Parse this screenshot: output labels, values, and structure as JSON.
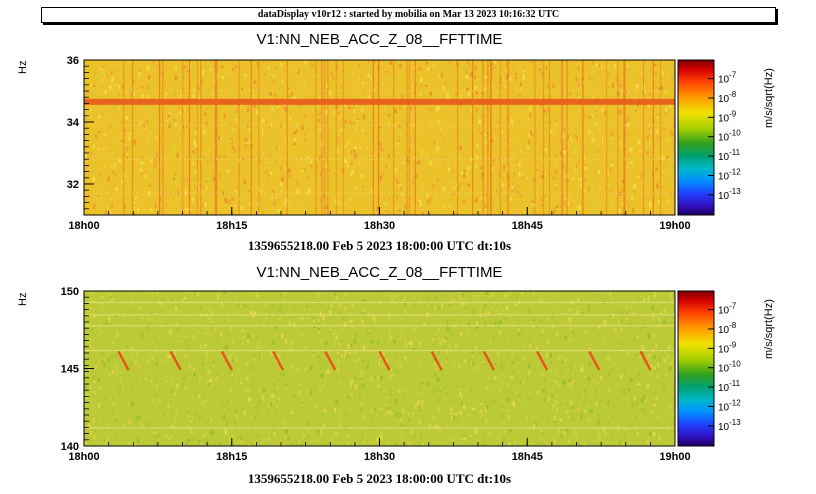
{
  "header": {
    "text": "dataDisplay v10r12 : started by mobilia on Mar 13 2023 10:16:32 UTC"
  },
  "colors": {
    "background_top": "#e8c227",
    "background_bottom": "#b8c93a",
    "track": "#e8521c"
  },
  "chart_data": [
    {
      "type": "heatmap",
      "title": "V1:NN_NEB_ACC_Z_08__FFTTIME",
      "ylabel": "Hz",
      "xlabel": "1359655218.00 Feb 5 2023 18:00:00 UTC dt:10s",
      "ylim": [
        31,
        36
      ],
      "yticks": [
        32,
        34,
        36
      ],
      "xticks": [
        "18h00",
        "18h15",
        "18h30",
        "18h45",
        "19h00"
      ],
      "zlabel": "m/s/sqrt(Hz)",
      "zticks": [
        "10-7",
        "10-8",
        "10-9",
        "10-10",
        "10-11",
        "10-12",
        "10-13"
      ],
      "features": {
        "horizontal_line_hz": 34.65,
        "dominant_level": "10-8"
      }
    },
    {
      "type": "heatmap",
      "title": "V1:NN_NEB_ACC_Z_08__FFTTIME",
      "ylabel": "Hz",
      "xlabel": "1359655218.00 Feb 5 2023 18:00:00 UTC dt:10s",
      "ylim": [
        140,
        150
      ],
      "yticks": [
        140,
        145,
        150
      ],
      "xticks": [
        "18h00",
        "18h15",
        "18h30",
        "18h45",
        "19h00"
      ],
      "zlabel": "m/s/sqrt(Hz)",
      "zticks": [
        "10-7",
        "10-8",
        "10-9",
        "10-10",
        "10-11",
        "10-12",
        "10-13"
      ],
      "features": {
        "chirps_start_min": [
          3.5,
          8.8,
          14,
          19.2,
          24.5,
          30,
          35.3,
          40.6,
          46,
          51.3,
          56.5
        ],
        "dominant_level": "10-9"
      }
    }
  ]
}
